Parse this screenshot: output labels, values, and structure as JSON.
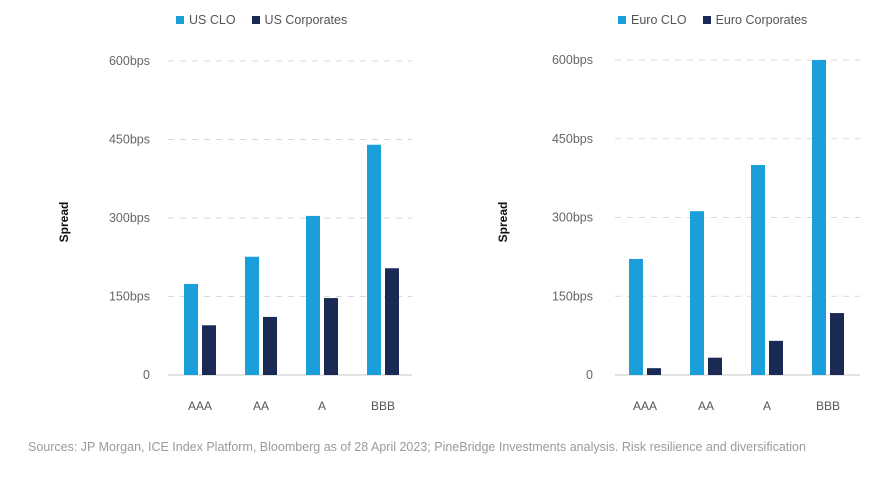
{
  "colors": {
    "clo": "#1a9fdb",
    "corp": "#1b2a55",
    "grid": "#d9d9d9",
    "axis": "#c8c8c8",
    "tick": "#666666"
  },
  "chart_data": [
    {
      "type": "bar",
      "title": "",
      "xlabel": "",
      "ylabel": "Spread",
      "ylim": [
        0,
        600
      ],
      "yticks": [
        0,
        150,
        300,
        450,
        600
      ],
      "ytick_labels": [
        "0",
        "150bps",
        "300bps",
        "450bps",
        "600bps"
      ],
      "grid": true,
      "legend_position": "top",
      "categories": [
        "AAA",
        "AA",
        "A",
        "BBB"
      ],
      "series": [
        {
          "name": "US CLO",
          "values": [
            174,
            226,
            304,
            440
          ]
        },
        {
          "name": "US Corporates",
          "values": [
            95,
            111,
            147,
            204
          ]
        }
      ]
    },
    {
      "type": "bar",
      "title": "",
      "xlabel": "",
      "ylabel": "Spread",
      "ylim": [
        0,
        600
      ],
      "yticks": [
        0,
        150,
        300,
        450,
        600
      ],
      "ytick_labels": [
        "0",
        "150bps",
        "300bps",
        "450bps",
        "600bps"
      ],
      "grid": true,
      "legend_position": "top",
      "categories": [
        "AAA",
        "AA",
        "A",
        "BBB"
      ],
      "series": [
        {
          "name": "Euro CLO",
          "values": [
            221,
            312,
            400,
            600
          ]
        },
        {
          "name": "Euro Corporates",
          "values": [
            13,
            33,
            65,
            118
          ]
        }
      ]
    }
  ],
  "source_text": "Sources: JP Morgan, ICE Index Platform, Bloomberg as of 28 April 2023; PineBridge Investments analysis. Risk resilience and diversification"
}
